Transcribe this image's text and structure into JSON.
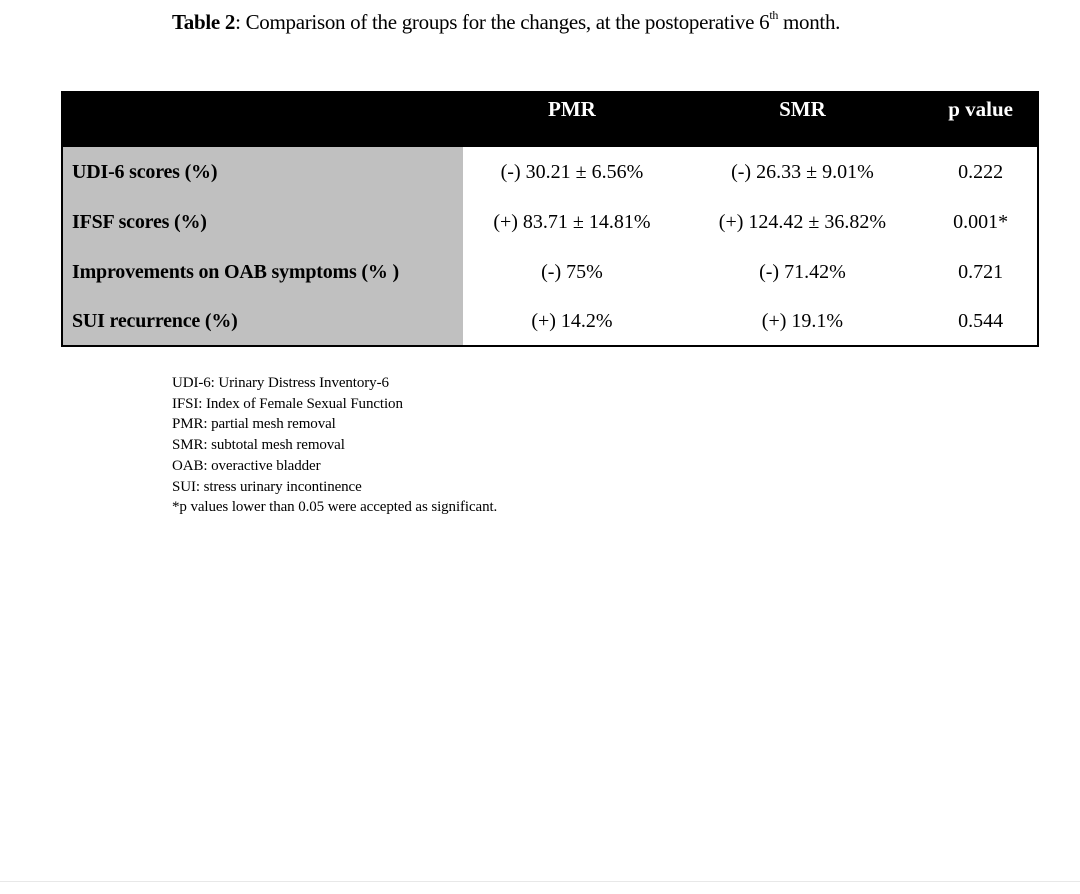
{
  "caption": {
    "label": "Table 2",
    "text_before_sup": ": Comparison of the groups for the changes, at the postoperative 6",
    "sup": "th",
    "text_after_sup": " month."
  },
  "table": {
    "headers": [
      "",
      "PMR",
      "SMR",
      "p value"
    ],
    "rows": [
      {
        "label": "UDI-6 scores (%)",
        "pmr": "(-) 30.21 ± 6.56%",
        "smr": "(-) 26.33 ± 9.01%",
        "p": "0.222"
      },
      {
        "label": "IFSF scores (%)",
        "pmr": "(+) 83.71 ± 14.81%",
        "smr": "(+) 124.42 ± 36.82%",
        "p": "0.001*"
      },
      {
        "label": "Improvements on OAB symptoms (% )",
        "pmr": "(-) 75%",
        "smr": "(-) 71.42%",
        "p": "0.721"
      },
      {
        "label": "SUI recurrence (%)",
        "pmr": "(+) 14.2%",
        "smr": "(+) 19.1%",
        "p": "0.544"
      }
    ],
    "header_background": "#000000",
    "rowhead_background": "#c0c0c0"
  },
  "notes": [
    "UDI-6: Urinary Distress Inventory-6",
    "IFSI: Index of Female Sexual Function",
    "PMR: partial mesh removal",
    "SMR: subtotal mesh removal",
    "OAB: overactive bladder",
    "SUI: stress urinary incontinence",
    "*p values lower than 0.05 were accepted as significant."
  ]
}
